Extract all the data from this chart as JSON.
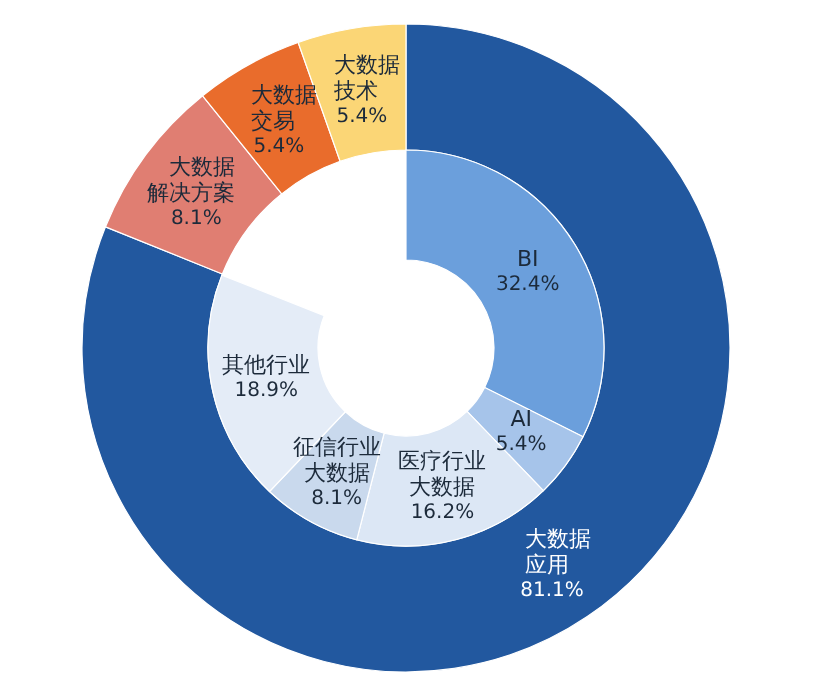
{
  "chart_data": [
    {
      "type": "donut",
      "categories": [
        "大数据应用",
        "大数据解决方案",
        "大数据交易",
        "大数据技术"
      ],
      "values": [
        81.1,
        8.1,
        5.4,
        5.4
      ],
      "value_labels": [
        "81.1%",
        "8.1%",
        "5.4%",
        "5.4%"
      ],
      "colors": [
        "#22589f",
        "#e07e72",
        "#e96c2c",
        "#fbd676"
      ]
    },
    {
      "type": "donut",
      "categories": [
        "BI",
        "AI",
        "医疗行业大数据",
        "征信行业大数据",
        "其他行业"
      ],
      "values": [
        32.4,
        5.4,
        16.2,
        8.1,
        18.9
      ],
      "value_labels": [
        "32.4%",
        "5.4%",
        "16.2%",
        "8.1%",
        "18.9%"
      ],
      "colors": [
        "#6b9fdc",
        "#a6c4ea",
        "#dce7f5",
        "#c9d9ed",
        "#e4ecf7"
      ]
    }
  ]
}
